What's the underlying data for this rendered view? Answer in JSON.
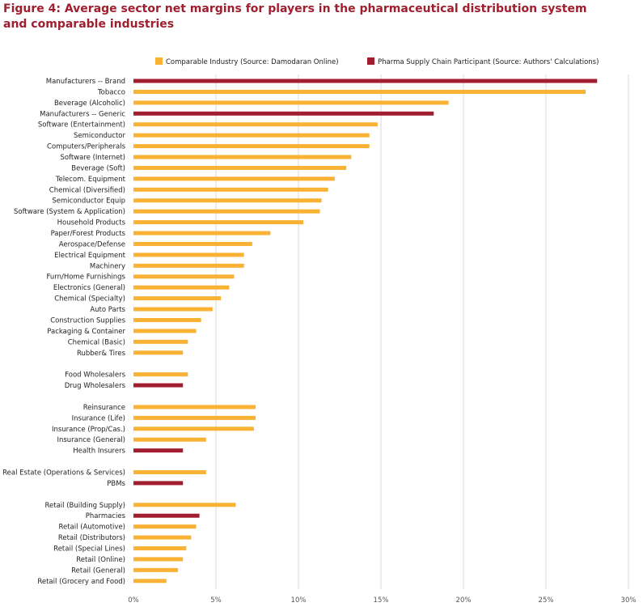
{
  "title_line1": "Figure 4: Average sector net margins for players in the pharmaceutical distribution system",
  "title_line2": "and comparable industries",
  "colors": {
    "comparable": "#f9b234",
    "pharma": "#a01e2e",
    "title": "#a01e2e",
    "grid": "#d9d9d9"
  },
  "chart_data": {
    "type": "bar",
    "orientation": "horizontal",
    "title": "Figure 4: Average sector net margins for players in the pharmaceutical distribution system and comparable industries",
    "xlabel": "",
    "ylabel": "",
    "xlim": [
      0,
      30
    ],
    "x_ticks": [
      0,
      5,
      10,
      15,
      20,
      25,
      30
    ],
    "x_tick_labels": [
      "0%",
      "5%",
      "10%",
      "15%",
      "20%",
      "25%",
      "30%"
    ],
    "grid": true,
    "legend_position": "top",
    "legend": [
      {
        "key": "comparable",
        "label": "Comparable Industry (Source: Damodaran Online)"
      },
      {
        "key": "pharma",
        "label": "Pharma Supply Chain Participant (Source: Authors' Calculations)"
      }
    ],
    "groups": [
      {
        "bars": [
          {
            "label": "Manufacturers -- Brand",
            "value": 28.1,
            "series": "pharma"
          },
          {
            "label": "Tobacco",
            "value": 27.4,
            "series": "comparable"
          },
          {
            "label": "Beverage (Alcoholic)",
            "value": 19.1,
            "series": "comparable"
          },
          {
            "label": "Manufacturers -- Generic",
            "value": 18.2,
            "series": "pharma"
          },
          {
            "label": "Software (Entertainment)",
            "value": 14.8,
            "series": "comparable"
          },
          {
            "label": "Semiconductor",
            "value": 14.3,
            "series": "comparable"
          },
          {
            "label": "Computers/Peripherals",
            "value": 14.3,
            "series": "comparable"
          },
          {
            "label": "Software (Internet)",
            "value": 13.2,
            "series": "comparable"
          },
          {
            "label": "Beverage (Soft)",
            "value": 12.9,
            "series": "comparable"
          },
          {
            "label": "Telecom. Equipment",
            "value": 12.2,
            "series": "comparable"
          },
          {
            "label": "Chemical (Diversified)",
            "value": 11.8,
            "series": "comparable"
          },
          {
            "label": "Semiconductor Equip",
            "value": 11.4,
            "series": "comparable"
          },
          {
            "label": "Software (System & Application)",
            "value": 11.3,
            "series": "comparable"
          },
          {
            "label": "Household Products",
            "value": 10.3,
            "series": "comparable"
          },
          {
            "label": "Paper/Forest Products",
            "value": 8.3,
            "series": "comparable"
          },
          {
            "label": "Aerospace/Defense",
            "value": 7.2,
            "series": "comparable"
          },
          {
            "label": "Electrical Equipment",
            "value": 6.7,
            "series": "comparable"
          },
          {
            "label": "Machinery",
            "value": 6.7,
            "series": "comparable"
          },
          {
            "label": "Furn/Home Furnishings",
            "value": 6.1,
            "series": "comparable"
          },
          {
            "label": "Electronics (General)",
            "value": 5.8,
            "series": "comparable"
          },
          {
            "label": "Chemical (Specialty)",
            "value": 5.3,
            "series": "comparable"
          },
          {
            "label": "Auto Parts",
            "value": 4.8,
            "series": "comparable"
          },
          {
            "label": "Construction Supplies",
            "value": 4.1,
            "series": "comparable"
          },
          {
            "label": "Packaging & Container",
            "value": 3.8,
            "series": "comparable"
          },
          {
            "label": "Chemical (Basic)",
            "value": 3.3,
            "series": "comparable"
          },
          {
            "label": "Rubber& Tires",
            "value": 3.0,
            "series": "comparable"
          }
        ]
      },
      {
        "bars": [
          {
            "label": "Food Wholesalers",
            "value": 3.3,
            "series": "comparable"
          },
          {
            "label": "Drug Wholesalers",
            "value": 3.0,
            "series": "pharma"
          }
        ]
      },
      {
        "bars": [
          {
            "label": "Reinsurance",
            "value": 7.4,
            "series": "comparable"
          },
          {
            "label": "Insurance (Life)",
            "value": 7.4,
            "series": "comparable"
          },
          {
            "label": "Insurance (Prop/Cas.)",
            "value": 7.3,
            "series": "comparable"
          },
          {
            "label": "Insurance (General)",
            "value": 4.4,
            "series": "comparable"
          },
          {
            "label": "Health Insurers",
            "value": 3.0,
            "series": "pharma"
          }
        ]
      },
      {
        "bars": [
          {
            "label": "Real Estate (Operations & Services)",
            "value": 4.4,
            "series": "comparable"
          },
          {
            "label": "PBMs",
            "value": 3.0,
            "series": "pharma"
          }
        ]
      },
      {
        "bars": [
          {
            "label": "Retail (Building Supply)",
            "value": 6.2,
            "series": "comparable"
          },
          {
            "label": "Pharmacies",
            "value": 4.0,
            "series": "pharma"
          },
          {
            "label": "Retail (Automotive)",
            "value": 3.8,
            "series": "comparable"
          },
          {
            "label": "Retail (Distributors)",
            "value": 3.5,
            "series": "comparable"
          },
          {
            "label": "Retail (Special Lines)",
            "value": 3.2,
            "series": "comparable"
          },
          {
            "label": "Retail (Online)",
            "value": 3.0,
            "series": "comparable"
          },
          {
            "label": "Retail (General)",
            "value": 2.7,
            "series": "comparable"
          },
          {
            "label": "Retail (Grocery and Food)",
            "value": 2.0,
            "series": "comparable"
          }
        ]
      }
    ]
  }
}
